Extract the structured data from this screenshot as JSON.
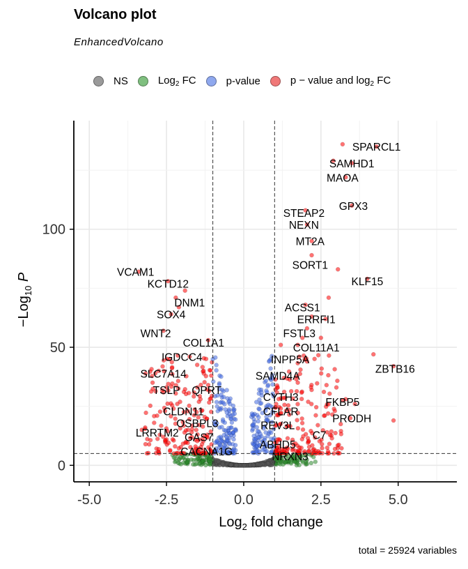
{
  "title": "Volcano plot",
  "subtitle": "EnhancedVolcano",
  "caption": "total = 25924 variables",
  "legend": [
    {
      "label": "NS",
      "color": "#555555"
    },
    {
      "label_main": "Log",
      "label_sub": "2",
      "label_end": " FC",
      "color": "#2e8b2e"
    },
    {
      "label": "p-value",
      "color": "#4169e1"
    },
    {
      "label_main": "p − value and log",
      "label_sub": "2",
      "label_end": " FC",
      "color": "#e31a1c"
    }
  ],
  "colors": {
    "NS": "#555555",
    "FC": "#2e8b2e",
    "P": "#4169e1",
    "both": "#ff0000"
  },
  "chart_data": {
    "type": "scatter",
    "title": "Volcano plot",
    "xlabel_main": "Log",
    "xlabel_sub": "2",
    "xlabel_end": " fold change",
    "ylabel_main": "−Log",
    "ylabel_sub": "10",
    "ylabel_end": " P",
    "xlim": [
      -5.5,
      6.9
    ],
    "ylim": [
      -7,
      146
    ],
    "xticks": [
      -5.0,
      -2.5,
      0.0,
      2.5,
      5.0
    ],
    "xtick_labels": [
      "-5.0",
      "-2.5",
      "0.0",
      "2.5",
      "5.0"
    ],
    "yticks": [
      0,
      50,
      100
    ],
    "ytick_labels": [
      "0",
      "50",
      "100"
    ],
    "fc_cutoff": 1,
    "p_cutoff_log": 5,
    "total_variables": 25924,
    "points": [
      {
        "x": 4.3,
        "y": 135
      },
      {
        "x": 3.2,
        "y": 136
      },
      {
        "x": 3.5,
        "y": 128
      },
      {
        "x": 2.9,
        "y": 129
      },
      {
        "x": 3.3,
        "y": 122
      },
      {
        "x": 3.5,
        "y": 110
      },
      {
        "x": 2.0,
        "y": 108
      },
      {
        "x": 2.05,
        "y": 102
      },
      {
        "x": 2.2,
        "y": 95
      },
      {
        "x": 2.2,
        "y": 89
      },
      {
        "x": 3.05,
        "y": 83
      },
      {
        "x": 4.0,
        "y": 79
      },
      {
        "x": -3.4,
        "y": 82
      },
      {
        "x": -2.45,
        "y": 78
      },
      {
        "x": -1.9,
        "y": 74
      },
      {
        "x": -2.2,
        "y": 71
      },
      {
        "x": -2.1,
        "y": 67
      },
      {
        "x": -2.35,
        "y": 64
      },
      {
        "x": 2.75,
        "y": 71
      },
      {
        "x": 2.0,
        "y": 68
      },
      {
        "x": 2.2,
        "y": 63
      },
      {
        "x": 2.65,
        "y": 62
      },
      {
        "x": 2.05,
        "y": 58
      },
      {
        "x": 2.5,
        "y": 54
      },
      {
        "x": -2.6,
        "y": 57
      },
      {
        "x": -1.15,
        "y": 53
      },
      {
        "x": 1.9,
        "y": 54
      },
      {
        "x": 1.75,
        "y": 51
      },
      {
        "x": 4.2,
        "y": 47
      },
      {
        "x": 4.85,
        "y": 42
      },
      {
        "x": 1.2,
        "y": 51
      },
      {
        "x": -2.4,
        "y": 45
      },
      {
        "x": -1.75,
        "y": 46
      },
      {
        "x": -1.0,
        "y": 45
      },
      {
        "x": 1.8,
        "y": 46
      },
      {
        "x": 2.05,
        "y": 44
      },
      {
        "x": -2.75,
        "y": 40
      },
      {
        "x": -1.3,
        "y": 40
      },
      {
        "x": -1.05,
        "y": 38
      },
      {
        "x": -1.15,
        "y": 34
      },
      {
        "x": 1.3,
        "y": 37
      },
      {
        "x": 1.75,
        "y": 35
      },
      {
        "x": 1.1,
        "y": 33
      },
      {
        "x": -2.95,
        "y": 35
      },
      {
        "x": -1.5,
        "y": 33
      },
      {
        "x": -2.5,
        "y": 33
      },
      {
        "x": 3.0,
        "y": 33
      },
      {
        "x": 3.3,
        "y": 28
      },
      {
        "x": 3.6,
        "y": 26
      },
      {
        "x": 3.45,
        "y": 20
      },
      {
        "x": 4.85,
        "y": 19
      },
      {
        "x": 2.6,
        "y": 21
      },
      {
        "x": 2.95,
        "y": 23
      },
      {
        "x": 2.4,
        "y": 17
      },
      {
        "x": 2.7,
        "y": 14
      },
      {
        "x": -2.55,
        "y": 23
      },
      {
        "x": -2.15,
        "y": 26
      },
      {
        "x": -1.4,
        "y": 28
      },
      {
        "x": -2.9,
        "y": 18
      },
      {
        "x": -3.3,
        "y": 15
      },
      {
        "x": -1.8,
        "y": 15
      },
      {
        "x": -2.3,
        "y": 11
      },
      {
        "x": -1.2,
        "y": 12
      }
    ],
    "labels": [
      {
        "text": "SPARCL1",
        "x": 4.3,
        "y": 135
      },
      {
        "text": "SAMHD1",
        "x": 3.5,
        "y": 128
      },
      {
        "text": "MAOA",
        "x": 3.2,
        "y": 122
      },
      {
        "text": "GPX3",
        "x": 3.55,
        "y": 110
      },
      {
        "text": "STEAP2",
        "x": 1.95,
        "y": 107
      },
      {
        "text": "NEXN",
        "x": 1.95,
        "y": 102
      },
      {
        "text": "MT2A",
        "x": 2.15,
        "y": 95
      },
      {
        "text": "SORT1",
        "x": 2.15,
        "y": 85
      },
      {
        "text": "KLF15",
        "x": 4.0,
        "y": 78
      },
      {
        "text": "VCAM1",
        "x": -3.5,
        "y": 82
      },
      {
        "text": "KCTD12",
        "x": -2.45,
        "y": 77
      },
      {
        "text": "DNM1",
        "x": -1.75,
        "y": 69
      },
      {
        "text": "SOX4",
        "x": -2.35,
        "y": 64
      },
      {
        "text": "ACSS1",
        "x": 1.9,
        "y": 67
      },
      {
        "text": "ERRFI1",
        "x": 2.35,
        "y": 62
      },
      {
        "text": "FSTL3",
        "x": 1.8,
        "y": 56
      },
      {
        "text": "WNT2",
        "x": -2.85,
        "y": 56
      },
      {
        "text": "COL1A1",
        "x": -1.3,
        "y": 52
      },
      {
        "text": "COL11A1",
        "x": 2.35,
        "y": 50
      },
      {
        "text": "IGDCC4",
        "x": -2.0,
        "y": 46
      },
      {
        "text": "INPP5A",
        "x": 1.5,
        "y": 45
      },
      {
        "text": "ZBTB16",
        "x": 4.9,
        "y": 41
      },
      {
        "text": "SLC7A14",
        "x": -2.6,
        "y": 39
      },
      {
        "text": "SAMD4A",
        "x": 1.1,
        "y": 38
      },
      {
        "text": "TSLP",
        "x": -2.5,
        "y": 32
      },
      {
        "text": "QPRT",
        "x": -1.2,
        "y": 32
      },
      {
        "text": "CYTH3",
        "x": 1.2,
        "y": 29
      },
      {
        "text": "FKBP5",
        "x": 3.2,
        "y": 27
      },
      {
        "text": "CLDN11",
        "x": -1.95,
        "y": 23
      },
      {
        "text": "CFLAR",
        "x": 1.2,
        "y": 23
      },
      {
        "text": "PRODH",
        "x": 3.5,
        "y": 20
      },
      {
        "text": "OSBPL3",
        "x": -1.5,
        "y": 18
      },
      {
        "text": "REV3L",
        "x": 1.1,
        "y": 17
      },
      {
        "text": "LRRTM2",
        "x": -2.8,
        "y": 14
      },
      {
        "text": "GAS7",
        "x": -1.45,
        "y": 12
      },
      {
        "text": "C7",
        "x": 2.45,
        "y": 13
      },
      {
        "text": "ABHD5",
        "x": 1.1,
        "y": 9
      },
      {
        "text": "CACNA1G",
        "x": -1.2,
        "y": 6
      },
      {
        "text": "NRXN3",
        "x": 1.5,
        "y": 4
      }
    ]
  }
}
